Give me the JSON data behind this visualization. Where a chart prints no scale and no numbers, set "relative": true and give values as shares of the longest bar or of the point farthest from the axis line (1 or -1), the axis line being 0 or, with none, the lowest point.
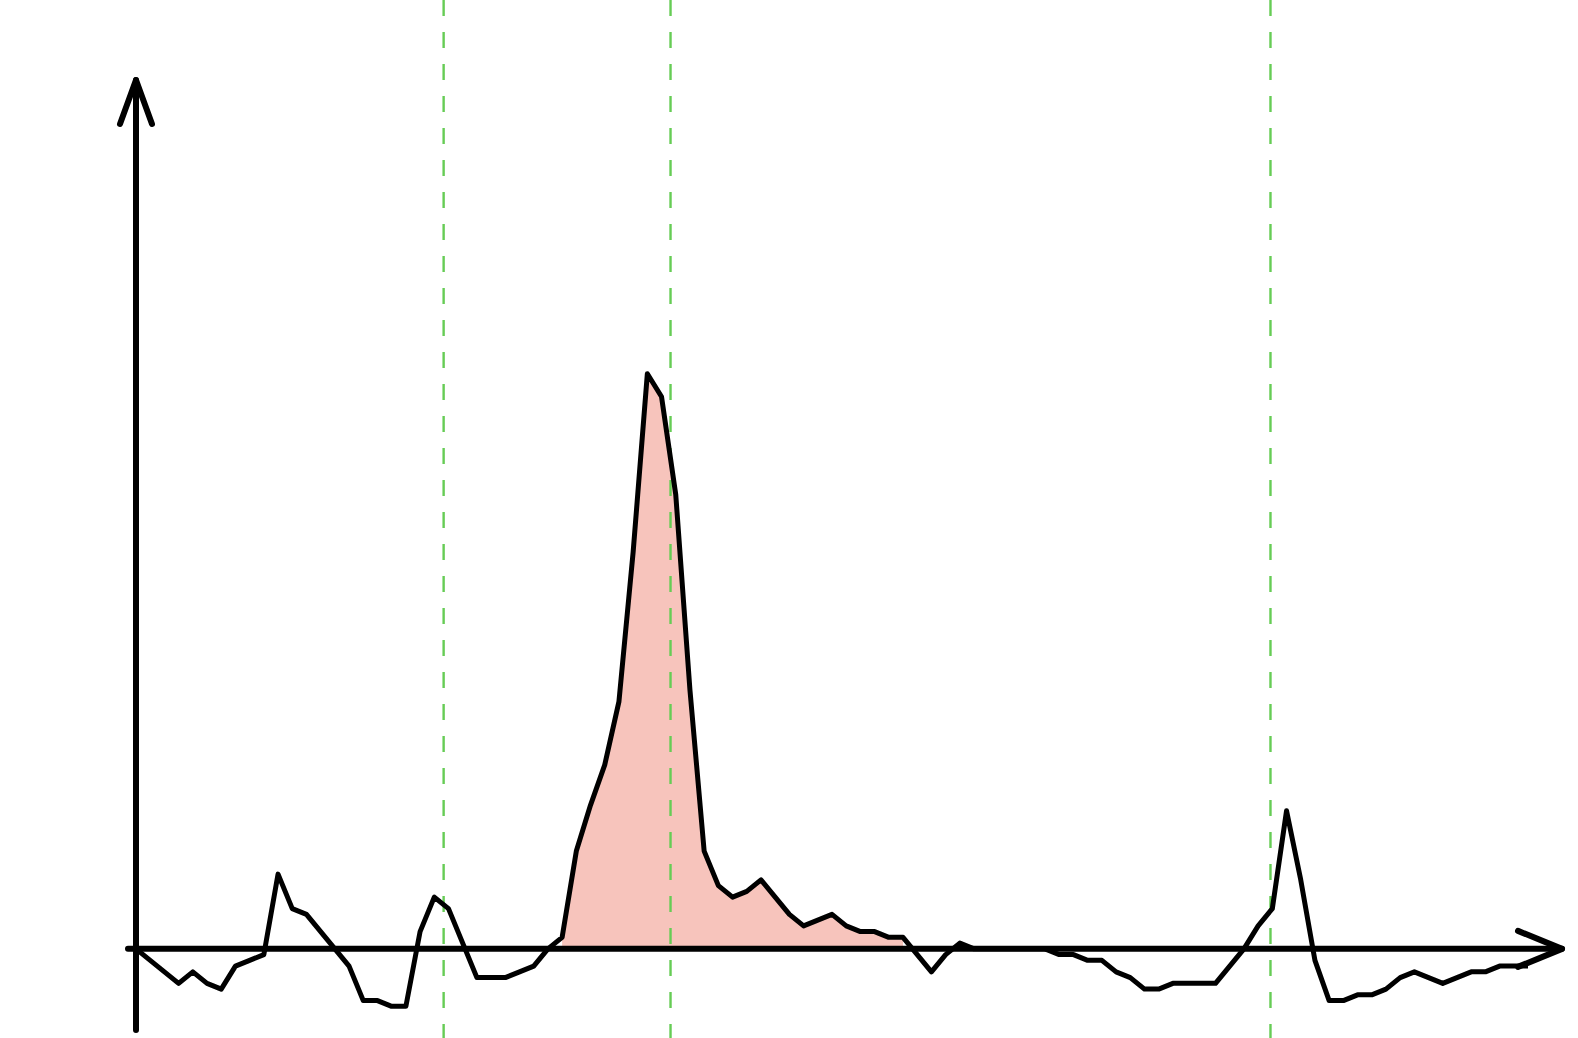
{
  "chart_data": {
    "type": "line",
    "relative": true,
    "tick_labels": false,
    "legend": false,
    "marker": "none",
    "line_style": "solid",
    "categories": [
      null,
      null,
      null,
      null,
      null,
      null,
      null,
      null,
      null,
      null,
      null,
      null,
      null,
      null,
      null,
      null,
      null,
      null,
      null,
      null,
      null,
      null,
      null,
      null,
      null,
      null,
      null,
      null,
      null,
      null,
      null,
      null,
      null,
      null,
      null,
      null,
      null,
      null,
      null,
      null,
      null,
      null,
      null,
      null,
      null,
      null,
      null,
      null,
      null,
      null,
      null,
      null,
      null,
      null,
      null,
      null,
      null,
      null,
      null,
      null,
      null,
      null,
      null,
      null,
      null,
      null,
      null,
      null,
      null,
      null,
      null,
      null,
      null,
      null,
      null,
      null,
      null,
      null,
      null,
      null,
      null,
      null,
      null,
      null,
      null,
      null,
      null,
      null,
      null,
      null,
      null,
      null,
      null,
      null,
      null,
      null,
      null,
      null,
      null
    ],
    "series": [
      {
        "color": "#000000",
        "values": [
          0,
          -0.02,
          -0.04,
          -0.06,
          -0.04,
          -0.06,
          -0.07,
          -0.03,
          -0.02,
          -0.01,
          0.13,
          0.07,
          0.06,
          0.03,
          0,
          -0.03,
          -0.09,
          -0.09,
          -0.1,
          -0.1,
          0.03,
          0.09,
          0.07,
          0.01,
          -0.05,
          -0.05,
          -0.05,
          -0.04,
          -0.03,
          0,
          0.02,
          0.17,
          0.25,
          0.32,
          0.43,
          0.69,
          1,
          0.96,
          0.79,
          0.45,
          0.17,
          0.11,
          0.09,
          0.1,
          0.12,
          0.09,
          0.06,
          0.04,
          0.05,
          0.06,
          0.04,
          0.03,
          0.03,
          0.02,
          0.02,
          -0.01,
          -0.04,
          -0.01,
          0.01,
          0,
          0,
          0,
          0,
          0,
          0,
          -0.01,
          -0.01,
          -0.02,
          -0.02,
          -0.04,
          -0.05,
          -0.07,
          -0.07,
          -0.06,
          -0.06,
          -0.06,
          -0.06,
          -0.03,
          0,
          0.04,
          0.07,
          0.24,
          0.12,
          -0.02,
          -0.09,
          -0.09,
          -0.08,
          -0.08,
          -0.07,
          -0.05,
          -0.04,
          -0.05,
          -0.06,
          -0.05,
          -0.04,
          -0.04,
          -0.03,
          -0.03,
          -0.03
        ]
      }
    ]
  }
}
